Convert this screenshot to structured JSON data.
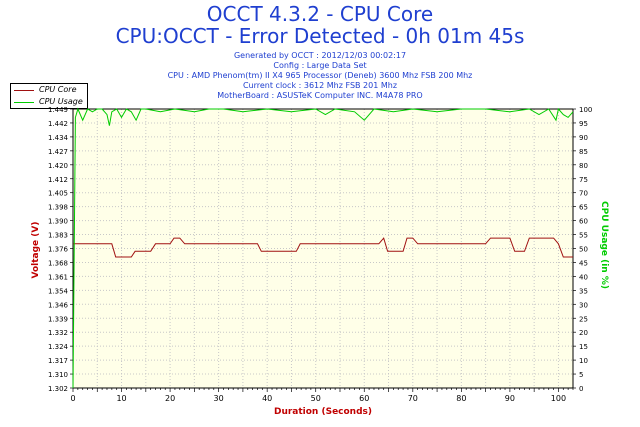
{
  "header": {
    "title": "OCCT 4.3.2 - CPU Core",
    "subtitle": "CPU:OCCT - Error Detected - 0h 01m 45s",
    "info_lines": [
      "Generated by OCCT : 2012/12/03 00:02:17",
      "Config : Large Data Set",
      "CPU : AMD Phenom(tm) II X4 965 Processor (Deneb) 3600 Mhz FSB 200 Mhz",
      "Current clock : 3612 Mhz FSB 201 Mhz",
      "MotherBoard : ASUSTeK Computer INC. M4A78 PRO"
    ]
  },
  "legend": [
    "CPU Core",
    "CPU Usage"
  ],
  "colors": {
    "voltage": "#a01010",
    "usage": "#00cc00",
    "plot_bg": "#ffffe8",
    "grid": "#c8c8c8",
    "title": "#1f3fd0",
    "ylabel": "#c00000",
    "y2label": "#00cc00",
    "xlabel": "#c00000"
  },
  "chart_data": {
    "type": "line",
    "xlabel": "Duration (Seconds)",
    "ylabel": "Voltage (V)",
    "y2label": "CPU Usage (in %)",
    "xlim": [
      0,
      103
    ],
    "x_ticks": [
      0,
      10,
      20,
      30,
      40,
      50,
      60,
      70,
      80,
      90,
      100
    ],
    "ylim": [
      1.302,
      1.449
    ],
    "y_ticks": [
      "1.302",
      "1.310",
      "1.317",
      "1.324",
      "1.332",
      "1.339",
      "1.346",
      "1.354",
      "1.361",
      "1.368",
      "1.376",
      "1.383",
      "1.390",
      "1.398",
      "1.405",
      "1.412",
      "1.420",
      "1.427",
      "1.434",
      "1.442",
      "1.449"
    ],
    "y2lim": [
      0,
      100
    ],
    "y2_ticks": [
      0,
      5,
      10,
      15,
      20,
      25,
      30,
      35,
      40,
      45,
      50,
      55,
      60,
      65,
      70,
      75,
      80,
      85,
      90,
      95,
      100
    ],
    "series": [
      {
        "name": "CPU Core",
        "axis": "left",
        "x": [
          0,
          8,
          8.8,
          12,
          12.8,
          16,
          17,
          20,
          20.8,
          22,
          23,
          30,
          36,
          38,
          38.8,
          46,
          46.8,
          50,
          60,
          63,
          64,
          64.8,
          68,
          68.8,
          70,
          71,
          74,
          75,
          80,
          85,
          86,
          90,
          91,
          93,
          94,
          99,
          100,
          101,
          103
        ],
        "y": [
          1.378,
          1.378,
          1.371,
          1.371,
          1.374,
          1.374,
          1.378,
          1.378,
          1.381,
          1.381,
          1.378,
          1.378,
          1.378,
          1.378,
          1.374,
          1.374,
          1.378,
          1.378,
          1.378,
          1.378,
          1.381,
          1.374,
          1.374,
          1.381,
          1.381,
          1.378,
          1.378,
          1.378,
          1.378,
          1.378,
          1.381,
          1.381,
          1.374,
          1.374,
          1.381,
          1.381,
          1.378,
          1.371,
          1.371
        ]
      },
      {
        "name": "CPU Usage",
        "axis": "right",
        "x": [
          0,
          0.5,
          1,
          2,
          3,
          4,
          5,
          6,
          7,
          7.5,
          8,
          9,
          10,
          11,
          12,
          13,
          14,
          15,
          18,
          21,
          25,
          28,
          31,
          35,
          40,
          45,
          50,
          52,
          54,
          58,
          60,
          62,
          66,
          70,
          75,
          80,
          85,
          90,
          94,
          96,
          98,
          99.5,
          100,
          101,
          102,
          103
        ],
        "y": [
          0,
          97,
          100,
          96,
          100,
          99,
          100,
          100,
          98,
          94,
          99,
          100,
          97,
          100,
          99,
          96,
          100,
          100,
          99,
          100,
          99,
          100,
          100,
          99,
          100,
          99,
          100,
          98,
          100,
          99,
          96,
          100,
          99,
          100,
          99,
          100,
          100,
          99,
          100,
          98,
          100,
          96,
          100,
          98,
          97,
          99
        ]
      }
    ]
  }
}
